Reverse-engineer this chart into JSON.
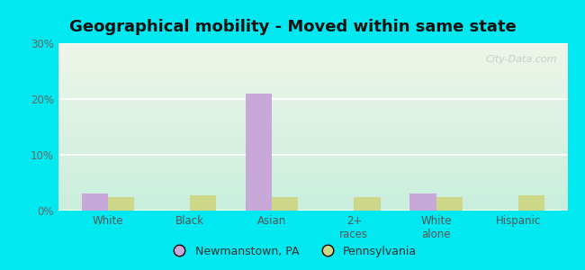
{
  "title": "Geographical mobility - Moved within same state",
  "categories": [
    "White",
    "Black",
    "Asian",
    "2+\nraces",
    "White\nalone",
    "Hispanic"
  ],
  "newmanstown_values": [
    3.0,
    0.0,
    21.0,
    0.0,
    3.0,
    0.0
  ],
  "pennsylvania_values": [
    2.5,
    2.8,
    2.5,
    2.5,
    2.5,
    2.8
  ],
  "newmanstown_color": "#c8a8d8",
  "pennsylvania_color": "#ccd888",
  "ylim": [
    0,
    30
  ],
  "yticks": [
    0,
    10,
    20,
    30
  ],
  "ytick_labels": [
    "0%",
    "10%",
    "20%",
    "30%"
  ],
  "background_outer": "#00e8f0",
  "background_inner_top": "#eef5e8",
  "background_inner_bottom": "#c8eedd",
  "bar_width": 0.32,
  "legend_labels": [
    "Newmanstown, PA",
    "Pennsylvania"
  ],
  "title_fontsize": 13,
  "tick_fontsize": 8.5,
  "legend_fontsize": 9
}
